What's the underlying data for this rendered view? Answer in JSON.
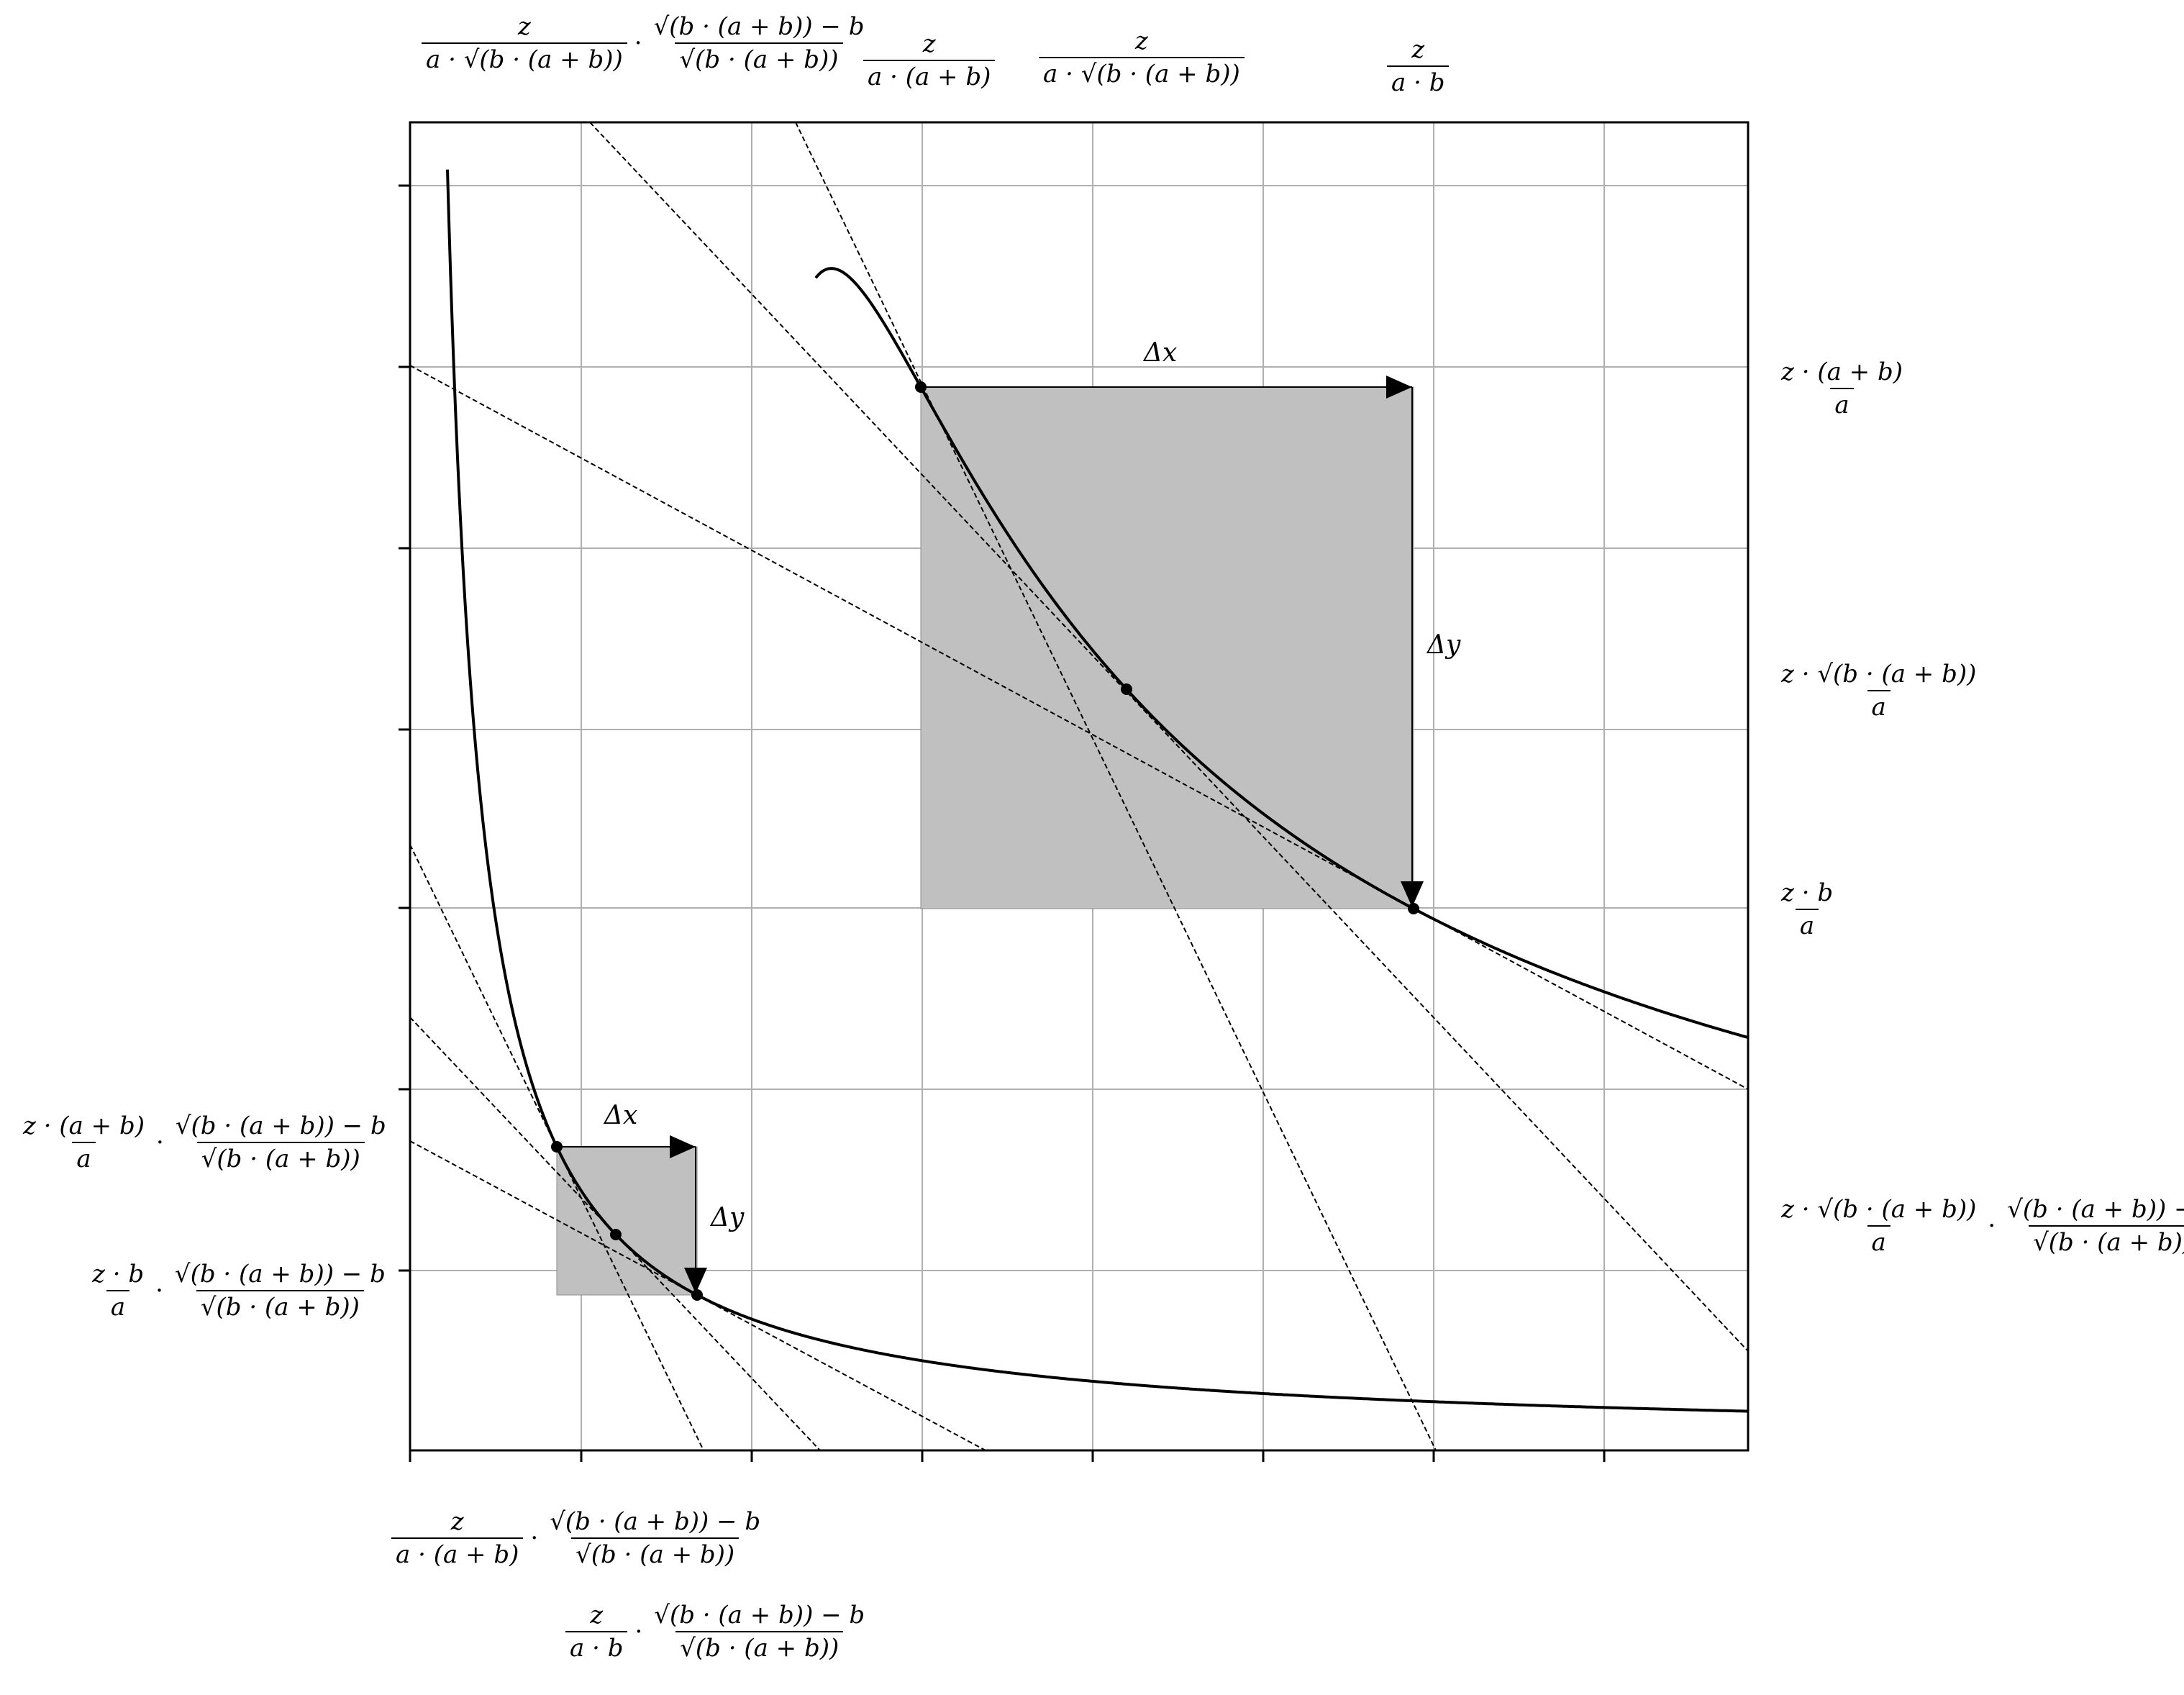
{
  "labels": {
    "top": [
      {
        "num1": "z",
        "den1": "a · √(b · (a + b))",
        "op": "·",
        "num2": "√(b · (a + b)) − b",
        "den2": "√(b · (a + b))"
      },
      {
        "num": "z",
        "den": "a · (a + b)"
      },
      {
        "num": "z",
        "den": "a · √(b · (a + b))"
      },
      {
        "num": "z",
        "den": "a · b"
      }
    ],
    "right": [
      {
        "num": "z · (a + b)",
        "den": "a"
      },
      {
        "num": "z · √(b · (a + b))",
        "den": "a"
      },
      {
        "num": "z · b",
        "den": "a"
      },
      {
        "num1": "z · √(b · (a + b))",
        "den1": "a",
        "op": "·",
        "num2": "√(b · (a + b)) − b",
        "den2": "√(b · (a + b))"
      }
    ],
    "left": [
      {
        "num1": "z · (a + b)",
        "den1": "a",
        "op": "·",
        "num2": "√(b · (a + b)) − b",
        "den2": "√(b · (a + b))"
      },
      {
        "num1": "z · b",
        "den1": "a",
        "op": "·",
        "num2": "√(b · (a + b)) − b",
        "den2": "√(b · (a + b))"
      }
    ],
    "bottom": [
      {
        "num1": "z",
        "den1": "a · (a + b)",
        "op": "·",
        "num2": "√(b · (a + b)) − b",
        "den2": "√(b · (a + b))"
      },
      {
        "num1": "z",
        "den1": "a · b",
        "op": "·",
        "num2": "√(b · (a + b)) − b",
        "den2": "√(b · (a + b))"
      }
    ]
  },
  "annotations": {
    "delta_x": "Δx",
    "delta_y": "Δy"
  },
  "style": {
    "region_fill": "#c0c0c0",
    "grid_color": "#b0b0b0",
    "curve_color": "#000000"
  }
}
